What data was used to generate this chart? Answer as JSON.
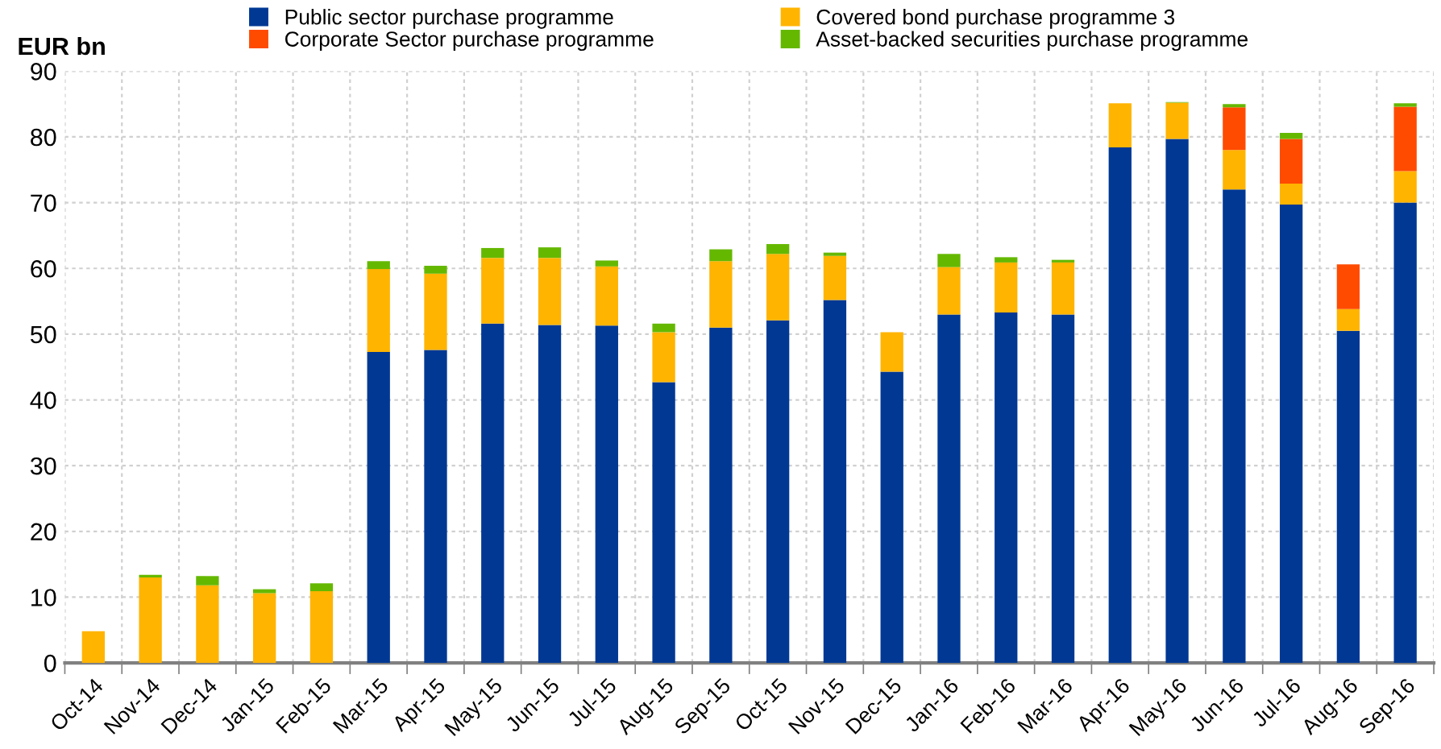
{
  "chart_data": {
    "type": "bar",
    "stacked": true,
    "ylabel": "EUR bn",
    "categories": [
      "Oct-14",
      "Nov-14",
      "Dec-14",
      "Jan-15",
      "Feb-15",
      "Mar-15",
      "Apr-15",
      "May-15",
      "Jun-15",
      "Jul-15",
      "Aug-15",
      "Sep-15",
      "Oct-15",
      "Nov-15",
      "Dec-15",
      "Jan-16",
      "Feb-16",
      "Mar-16",
      "Apr-16",
      "May-16",
      "Jun-16",
      "Jul-16",
      "Aug-16",
      "Sep-16"
    ],
    "series": [
      {
        "name": "Public sector purchase programme",
        "color": "#003894",
        "values": [
          null,
          null,
          null,
          null,
          null,
          47.3,
          47.6,
          51.6,
          51.4,
          51.3,
          42.7,
          51.0,
          52.1,
          55.2,
          44.3,
          53.0,
          53.3,
          53.0,
          78.4,
          79.7,
          72.0,
          69.7,
          50.5,
          70.0
        ]
      },
      {
        "name": "Covered bond purchase programme 3",
        "color": "#ffb400",
        "values": [
          4.8,
          13.0,
          11.8,
          10.6,
          10.9,
          12.6,
          11.6,
          10.0,
          10.2,
          9.0,
          7.6,
          10.1,
          10.1,
          6.7,
          6.0,
          7.2,
          7.6,
          7.9,
          6.7,
          5.5,
          6.0,
          3.2,
          3.3,
          4.8
        ]
      },
      {
        "name": "Corporate Sector purchase programme",
        "color": "#ff4b00",
        "values": [
          null,
          null,
          null,
          null,
          null,
          null,
          null,
          null,
          null,
          null,
          null,
          null,
          null,
          null,
          null,
          null,
          null,
          null,
          null,
          null,
          6.5,
          6.8,
          6.8,
          9.8
        ]
      },
      {
        "name": "Asset-backed securities purchase programme",
        "color": "#65b800",
        "values": [
          null,
          0.4,
          1.4,
          0.6,
          1.2,
          1.2,
          1.2,
          1.5,
          1.6,
          0.9,
          1.3,
          1.8,
          1.5,
          0.5,
          null,
          2.0,
          0.8,
          0.4,
          null,
          0.1,
          0.5,
          0.9,
          null,
          0.5
        ]
      }
    ],
    "ylim": [
      0,
      90
    ],
    "yticks": [
      0,
      10,
      20,
      30,
      40,
      50,
      60,
      70,
      80,
      90
    ],
    "grid": true,
    "legend": "top"
  }
}
